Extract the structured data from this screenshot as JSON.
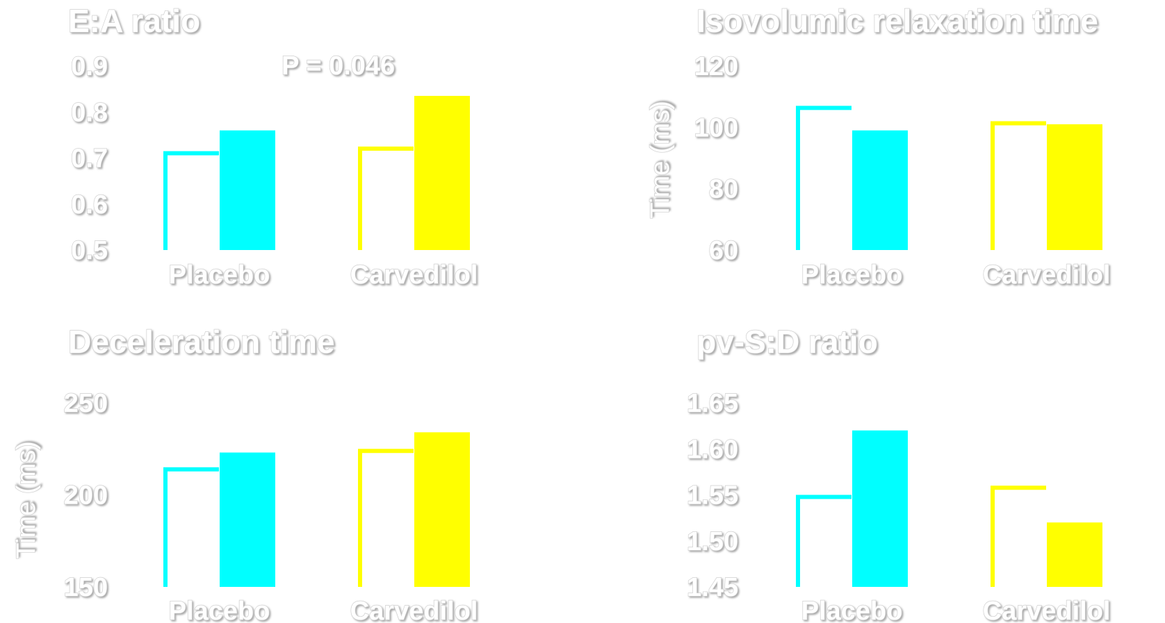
{
  "chart_data": [
    {
      "type": "bar",
      "title": "E:A ratio",
      "ylabel": "",
      "categories": [
        "Placebo",
        "Carvedilol"
      ],
      "series": [
        {
          "values": [
            0.715,
            0.725
          ],
          "style": "outline"
        },
        {
          "values": [
            0.76,
            0.835
          ],
          "style": "filled"
        }
      ],
      "colors": [
        "#00ffff",
        "#ffff00"
      ],
      "ylim": [
        0.5,
        0.9
      ],
      "yticks": [
        "0.5",
        "0.6",
        "0.7",
        "0.8",
        "0.9"
      ],
      "annotation": "P = 0.046"
    },
    {
      "type": "bar",
      "title": "Isovolumic relaxation time",
      "ylabel": "Time (ms)",
      "categories": [
        "Placebo",
        "Carvedilol"
      ],
      "series": [
        {
          "values": [
            107,
            102
          ],
          "style": "outline"
        },
        {
          "values": [
            99,
            101
          ],
          "style": "filled"
        }
      ],
      "colors": [
        "#00ffff",
        "#ffff00"
      ],
      "ylim": [
        60,
        120
      ],
      "yticks": [
        "60",
        "80",
        "100",
        "120"
      ]
    },
    {
      "type": "bar",
      "title": "Deceleration time",
      "ylabel": "Time (ms)",
      "categories": [
        "Placebo",
        "Carvedilol"
      ],
      "series": [
        {
          "values": [
            215,
            225
          ],
          "style": "outline"
        },
        {
          "values": [
            223,
            234
          ],
          "style": "filled"
        }
      ],
      "colors": [
        "#00ffff",
        "#ffff00"
      ],
      "ylim": [
        150,
        250
      ],
      "yticks": [
        "150",
        "200",
        "250"
      ]
    },
    {
      "type": "bar",
      "title": "pv-S:D ratio",
      "ylabel": "",
      "categories": [
        "Placebo",
        "Carvedilol"
      ],
      "series": [
        {
          "values": [
            1.55,
            1.56
          ],
          "style": "outline"
        },
        {
          "values": [
            1.62,
            1.52
          ],
          "style": "filled"
        }
      ],
      "colors": [
        "#00ffff",
        "#ffff00"
      ],
      "ylim": [
        1.45,
        1.65
      ],
      "yticks": [
        "1.45",
        "1.50",
        "1.55",
        "1.60",
        "1.65"
      ]
    }
  ]
}
